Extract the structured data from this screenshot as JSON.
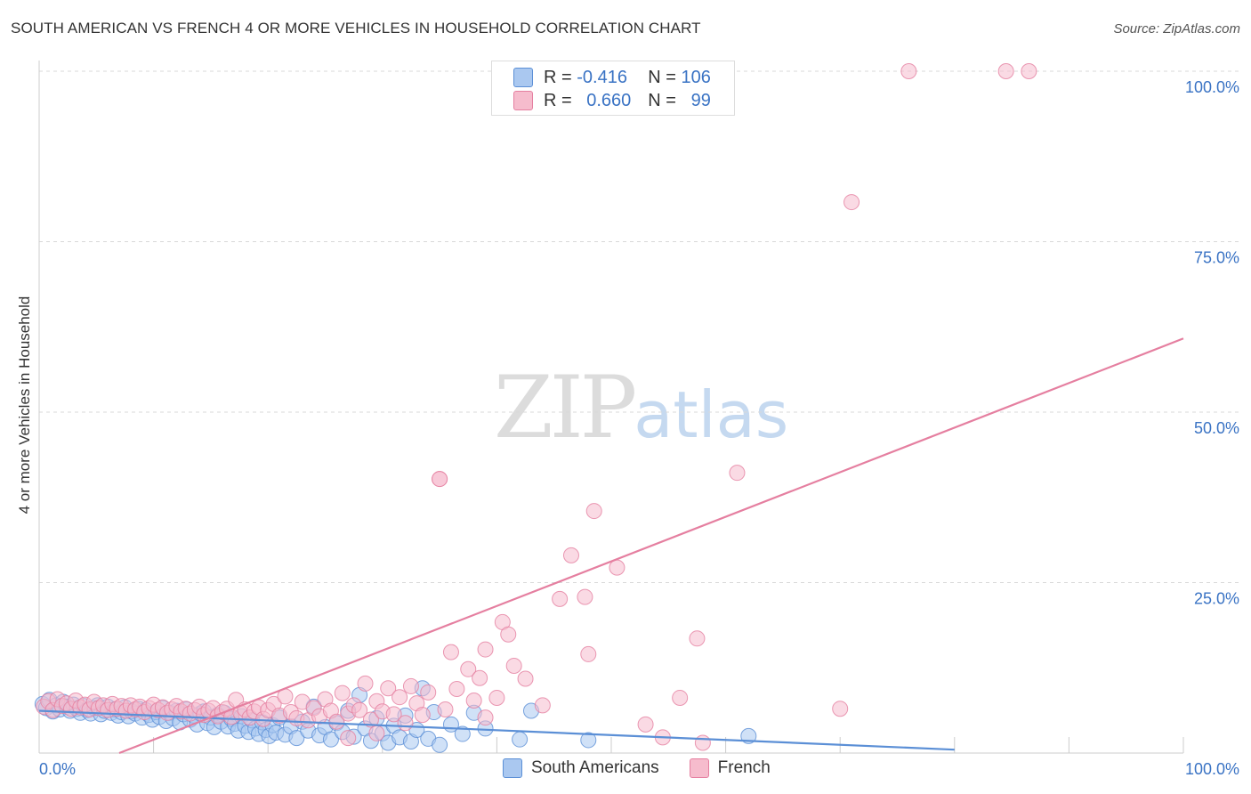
{
  "title": "SOUTH AMERICAN VS FRENCH 4 OR MORE VEHICLES IN HOUSEHOLD CORRELATION CHART",
  "source": "Source: ZipAtlas.com",
  "watermark": {
    "zip": "ZIP",
    "atlas": "atlas"
  },
  "legend": {
    "r_label": "R =",
    "n_label": "N =",
    "series": [
      {
        "name": "South Americans",
        "r": "-0.416",
        "n": "106",
        "fill": "#aac8f0",
        "stroke": "#5b8fd6"
      },
      {
        "name": "French",
        "r": "0.660",
        "n": "99",
        "fill": "#f6bccd",
        "stroke": "#e57fa0"
      }
    ]
  },
  "chart_data": {
    "type": "scatter",
    "title": "SOUTH AMERICAN VS FRENCH 4 OR MORE VEHICLES IN HOUSEHOLD CORRELATION CHART",
    "xlabel": "",
    "ylabel": "4 or more Vehicles in Household",
    "xlim": [
      0,
      100
    ],
    "ylim": [
      0,
      100
    ],
    "x_tick_labels": [
      "0.0%",
      "100.0%"
    ],
    "y_ticks": [
      25,
      50,
      75,
      100
    ],
    "y_tick_labels": [
      "25.0%",
      "50.0%",
      "75.0%",
      "100.0%"
    ],
    "series": [
      {
        "name": "South Americans",
        "color": "#5b8fd6",
        "fill": "#aac8f0",
        "trend": {
          "x": [
            0,
            80
          ],
          "y": [
            6.2,
            0.5
          ]
        },
        "points": [
          [
            0.3,
            7.2
          ],
          [
            0.6,
            6.6
          ],
          [
            0.9,
            7.8
          ],
          [
            1.2,
            6.1
          ],
          [
            1.5,
            7.0
          ],
          [
            1.8,
            6.4
          ],
          [
            2.1,
            7.5
          ],
          [
            2.4,
            6.8
          ],
          [
            2.7,
            6.2
          ],
          [
            3.0,
            7.1
          ],
          [
            3.3,
            6.5
          ],
          [
            3.6,
            5.9
          ],
          [
            3.9,
            6.9
          ],
          [
            4.2,
            6.3
          ],
          [
            4.5,
            5.8
          ],
          [
            4.8,
            6.6
          ],
          [
            5.1,
            7.0
          ],
          [
            5.4,
            5.7
          ],
          [
            5.7,
            6.2
          ],
          [
            6.0,
            6.8
          ],
          [
            6.3,
            5.9
          ],
          [
            6.6,
            6.4
          ],
          [
            6.9,
            5.5
          ],
          [
            7.2,
            6.0
          ],
          [
            7.5,
            6.7
          ],
          [
            7.8,
            5.4
          ],
          [
            8.1,
            6.1
          ],
          [
            8.4,
            5.8
          ],
          [
            8.7,
            6.5
          ],
          [
            9.0,
            5.2
          ],
          [
            9.3,
            6.3
          ],
          [
            9.6,
            5.6
          ],
          [
            9.9,
            4.9
          ],
          [
            10.2,
            6.0
          ],
          [
            10.5,
            5.3
          ],
          [
            10.8,
            6.6
          ],
          [
            11.1,
            4.7
          ],
          [
            11.4,
            5.9
          ],
          [
            11.7,
            5.1
          ],
          [
            12.0,
            6.2
          ],
          [
            12.3,
            4.5
          ],
          [
            12.6,
            5.7
          ],
          [
            12.9,
            6.4
          ],
          [
            13.2,
            4.9
          ],
          [
            13.5,
            5.5
          ],
          [
            13.8,
            4.2
          ],
          [
            14.1,
            5.8
          ],
          [
            14.4,
            6.1
          ],
          [
            14.7,
            4.4
          ],
          [
            15.0,
            5.2
          ],
          [
            15.3,
            3.8
          ],
          [
            15.6,
            5.6
          ],
          [
            15.9,
            4.6
          ],
          [
            16.2,
            5.9
          ],
          [
            16.5,
            3.9
          ],
          [
            16.8,
            5.0
          ],
          [
            17.1,
            4.3
          ],
          [
            17.4,
            3.3
          ],
          [
            17.7,
            5.4
          ],
          [
            18.0,
            4.0
          ],
          [
            18.3,
            3.1
          ],
          [
            18.6,
            4.8
          ],
          [
            18.9,
            3.6
          ],
          [
            19.2,
            2.8
          ],
          [
            19.5,
            4.5
          ],
          [
            19.8,
            3.4
          ],
          [
            20.1,
            2.5
          ],
          [
            20.4,
            4.1
          ],
          [
            20.7,
            3.0
          ],
          [
            21.0,
            5.2
          ],
          [
            21.5,
            2.7
          ],
          [
            22.0,
            3.9
          ],
          [
            22.5,
            2.2
          ],
          [
            23.0,
            4.6
          ],
          [
            23.5,
            3.3
          ],
          [
            24.0,
            6.8
          ],
          [
            24.5,
            2.6
          ],
          [
            25.0,
            3.8
          ],
          [
            25.5,
            2.0
          ],
          [
            26.0,
            4.4
          ],
          [
            26.5,
            3.1
          ],
          [
            27.0,
            6.2
          ],
          [
            27.5,
            2.4
          ],
          [
            28.0,
            8.5
          ],
          [
            28.5,
            3.6
          ],
          [
            29.0,
            1.8
          ],
          [
            29.5,
            5.1
          ],
          [
            30.0,
            2.9
          ],
          [
            30.5,
            1.5
          ],
          [
            31.0,
            4.0
          ],
          [
            31.5,
            2.3
          ],
          [
            32.0,
            5.5
          ],
          [
            32.5,
            1.7
          ],
          [
            33.0,
            3.4
          ],
          [
            33.5,
            9.5
          ],
          [
            34.0,
            2.1
          ],
          [
            34.5,
            6.0
          ],
          [
            35.0,
            1.2
          ],
          [
            36.0,
            4.2
          ],
          [
            37.0,
            2.8
          ],
          [
            38.0,
            5.9
          ],
          [
            39.0,
            3.6
          ],
          [
            42.0,
            2.0
          ],
          [
            43.0,
            6.2
          ],
          [
            48.0,
            1.9
          ],
          [
            62.0,
            2.5
          ]
        ]
      },
      {
        "name": "French",
        "color": "#e57fa0",
        "fill": "#f6bccd",
        "trend": {
          "x": [
            7,
            100
          ],
          "y": [
            0,
            60.8
          ]
        },
        "points": [
          [
            0.4,
            6.8
          ],
          [
            0.8,
            7.6
          ],
          [
            1.2,
            6.3
          ],
          [
            1.6,
            7.9
          ],
          [
            2.0,
            6.9
          ],
          [
            2.4,
            7.3
          ],
          [
            2.8,
            6.5
          ],
          [
            3.2,
            7.7
          ],
          [
            3.6,
            6.7
          ],
          [
            4.0,
            7.1
          ],
          [
            4.4,
            6.4
          ],
          [
            4.8,
            7.5
          ],
          [
            5.2,
            6.6
          ],
          [
            5.6,
            7.0
          ],
          [
            6.0,
            6.3
          ],
          [
            6.4,
            7.2
          ],
          [
            6.8,
            6.5
          ],
          [
            7.2,
            6.9
          ],
          [
            7.6,
            6.2
          ],
          [
            8.0,
            7.0
          ],
          [
            8.4,
            6.4
          ],
          [
            8.8,
            6.8
          ],
          [
            9.2,
            6.0
          ],
          [
            9.6,
            6.6
          ],
          [
            10.0,
            7.1
          ],
          [
            10.4,
            6.3
          ],
          [
            10.8,
            6.7
          ],
          [
            11.2,
            5.9
          ],
          [
            11.6,
            6.4
          ],
          [
            12.0,
            6.9
          ],
          [
            12.4,
            6.1
          ],
          [
            12.8,
            6.5
          ],
          [
            13.2,
            5.8
          ],
          [
            13.6,
            6.3
          ],
          [
            14.0,
            6.8
          ],
          [
            14.4,
            5.6
          ],
          [
            14.8,
            6.2
          ],
          [
            15.2,
            6.6
          ],
          [
            15.6,
            5.4
          ],
          [
            16.0,
            6.0
          ],
          [
            16.4,
            6.5
          ],
          [
            16.8,
            5.3
          ],
          [
            17.2,
            7.8
          ],
          [
            17.6,
            5.9
          ],
          [
            18.0,
            6.4
          ],
          [
            18.4,
            5.2
          ],
          [
            18.8,
            6.1
          ],
          [
            19.2,
            6.7
          ],
          [
            19.6,
            5.0
          ],
          [
            20.0,
            6.3
          ],
          [
            20.5,
            7.2
          ],
          [
            21.0,
            5.5
          ],
          [
            21.5,
            8.3
          ],
          [
            22.0,
            6.0
          ],
          [
            22.5,
            5.1
          ],
          [
            23.0,
            7.5
          ],
          [
            23.5,
            4.8
          ],
          [
            24.0,
            6.6
          ],
          [
            24.5,
            5.4
          ],
          [
            25.0,
            7.9
          ],
          [
            25.5,
            6.2
          ],
          [
            26.0,
            4.6
          ],
          [
            26.5,
            8.8
          ],
          [
            27.0,
            5.8
          ],
          [
            27.5,
            7.0
          ],
          [
            28.0,
            6.3
          ],
          [
            28.5,
            10.2
          ],
          [
            29.0,
            4.9
          ],
          [
            29.5,
            7.6
          ],
          [
            30.0,
            6.1
          ],
          [
            30.5,
            9.5
          ],
          [
            31.0,
            5.7
          ],
          [
            31.5,
            8.2
          ],
          [
            32.0,
            4.4
          ],
          [
            32.5,
            9.8
          ],
          [
            33.0,
            7.3
          ],
          [
            33.5,
            5.6
          ],
          [
            34.0,
            8.9
          ],
          [
            35.0,
            40.2
          ],
          [
            35.5,
            6.4
          ],
          [
            36.0,
            14.8
          ],
          [
            36.5,
            9.4
          ],
          [
            37.5,
            12.3
          ],
          [
            38.0,
            7.7
          ],
          [
            38.5,
            11.0
          ],
          [
            39.0,
            5.2
          ],
          [
            40.0,
            8.1
          ],
          [
            40.5,
            19.2
          ],
          [
            41.0,
            17.4
          ],
          [
            41.5,
            12.8
          ],
          [
            42.5,
            10.9
          ],
          [
            44.0,
            7.0
          ],
          [
            45.5,
            22.6
          ],
          [
            46.5,
            29.0
          ],
          [
            48.0,
            14.5
          ],
          [
            48.5,
            35.5
          ],
          [
            50.5,
            27.2
          ],
          [
            57.5,
            16.8
          ],
          [
            61.0,
            41.1
          ]
        ],
        "extra_points": [
          [
            35,
            40.2
          ],
          [
            47.7,
            22.9
          ],
          [
            56,
            8.1
          ],
          [
            53,
            4.2
          ],
          [
            54.5,
            2.3
          ],
          [
            58,
            1.5
          ],
          [
            71,
            80.8
          ],
          [
            76,
            100
          ],
          [
            84.5,
            100
          ],
          [
            86.5,
            100
          ],
          [
            70,
            6.5
          ],
          [
            39,
            15.2
          ],
          [
            29.5,
            2.9
          ],
          [
            27,
            2.2
          ]
        ]
      }
    ]
  }
}
